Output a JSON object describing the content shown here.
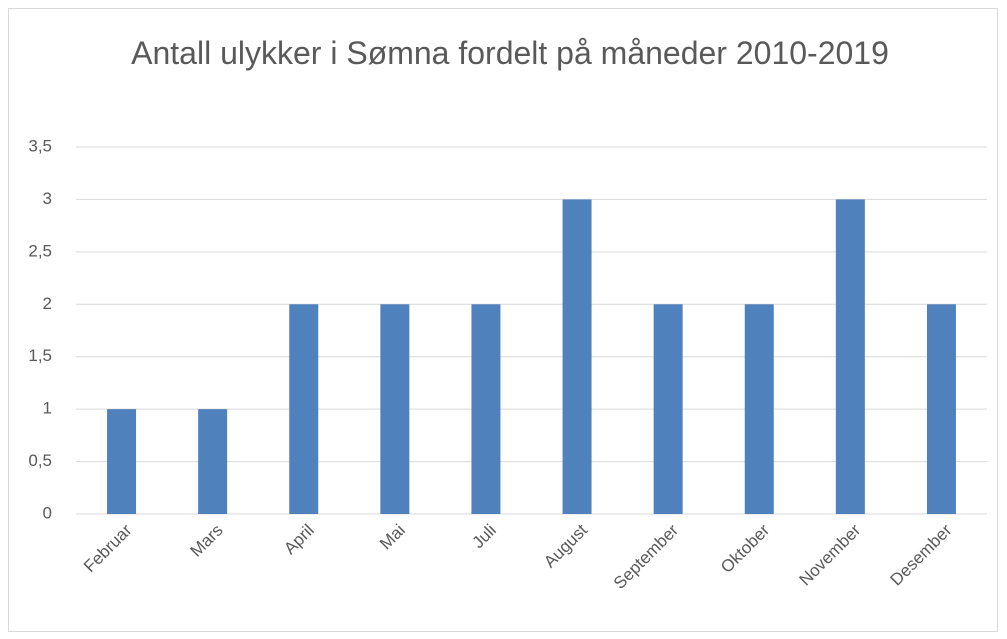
{
  "chart_data": {
    "type": "bar",
    "title": "Antall ulykker i Sømna fordelt på måneder 2010-2019",
    "categories": [
      "Februar",
      "Mars",
      "April",
      "Mai",
      "Juli",
      "August",
      "September",
      "Oktober",
      "November",
      "Desember"
    ],
    "values": [
      1,
      1,
      2,
      2,
      2,
      3,
      2,
      2,
      3,
      2
    ],
    "color": "#4f81bd",
    "ylim": [
      0,
      3.5
    ],
    "yticks": [
      0,
      {
        "value": 0.5,
        "label": "0,5"
      },
      1,
      {
        "value": 1.5,
        "label": "1,5"
      },
      2,
      {
        "value": 2.5,
        "label": "2,5"
      },
      3,
      {
        "value": 3.5,
        "label": "3,5"
      }
    ],
    "grid": true
  }
}
